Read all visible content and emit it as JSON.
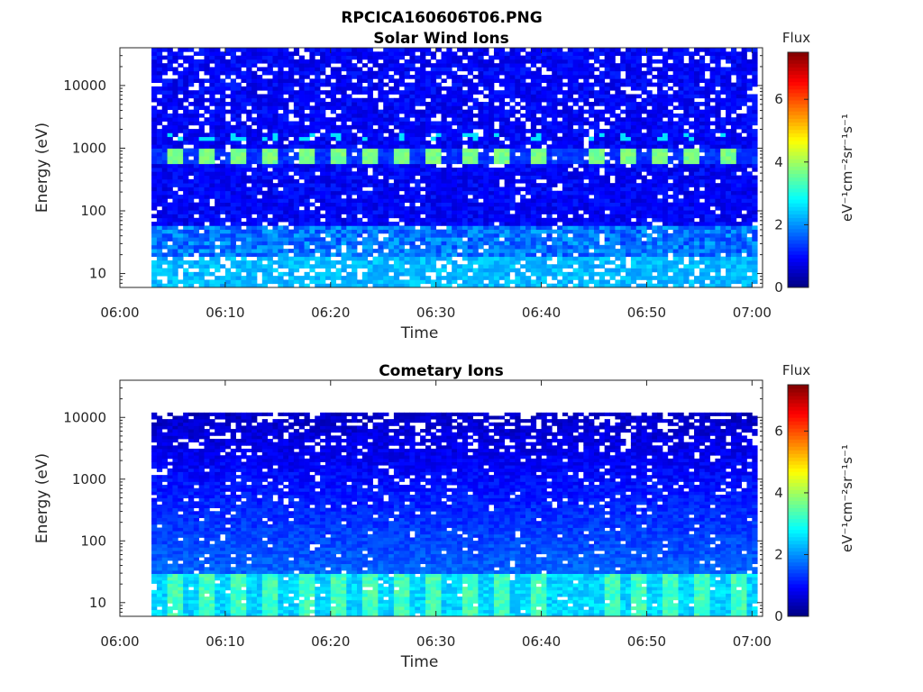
{
  "figure": {
    "title": "RPCICA160606T06.PNG"
  },
  "chart_data": [
    {
      "type": "heatmap",
      "title": "Solar Wind Ions",
      "xlabel": "Time",
      "ylabel": "Energy (eV)",
      "x_tick_labels": [
        "06:00",
        "06:10",
        "06:20",
        "06:30",
        "06:40",
        "06:50",
        "07:00"
      ],
      "x_range_minutes": [
        0,
        61
      ],
      "y_scale": "log",
      "y_ticks": [
        10,
        100,
        1000,
        10000
      ],
      "y_tick_labels": [
        "10",
        "100",
        "1000",
        "10000"
      ],
      "y_range": [
        6,
        40000
      ],
      "data_start_minute": 3,
      "data_max_energy": 40000,
      "colorbar": {
        "title": "Flux",
        "label": "eV⁻¹cm⁻²sr⁻¹s⁻¹",
        "range": [
          0,
          7.5
        ],
        "ticks": [
          0,
          2,
          4,
          6
        ],
        "colormap": "jet"
      },
      "features": {
        "high_flux_band_energy_eV": [
          600,
          1000
        ],
        "high_flux_band_value": 3.5,
        "burst_minutes": [
          5,
          8,
          11,
          14,
          17.5,
          20.5,
          23.5,
          26.5,
          29.5,
          33,
          36,
          39.5,
          45,
          48,
          51,
          54,
          57.5
        ],
        "low_energy_value": 2.0
      }
    },
    {
      "type": "heatmap",
      "title": "Cometary Ions",
      "xlabel": "Time",
      "ylabel": "Energy (eV)",
      "x_tick_labels": [
        "06:00",
        "06:10",
        "06:20",
        "06:30",
        "06:40",
        "06:50",
        "07:00"
      ],
      "x_range_minutes": [
        0,
        61
      ],
      "y_scale": "log",
      "y_ticks": [
        10,
        100,
        1000,
        10000
      ],
      "y_tick_labels": [
        "10",
        "100",
        "1000",
        "10000"
      ],
      "y_range": [
        6,
        40000
      ],
      "data_start_minute": 3,
      "data_max_energy": 12000,
      "colorbar": {
        "title": "Flux",
        "label": "eV⁻¹cm⁻²sr⁻¹s⁻¹",
        "range": [
          0,
          7.5
        ],
        "ticks": [
          0,
          2,
          4,
          6
        ],
        "colormap": "jet"
      },
      "features": {
        "burst_minutes": [
          5,
          8,
          11,
          14,
          17.5,
          20.5,
          23.5,
          26.5,
          29.5,
          33,
          36,
          39.5,
          46.5,
          49,
          52,
          55,
          58.5
        ],
        "low_energy_value": 2.8
      }
    }
  ]
}
